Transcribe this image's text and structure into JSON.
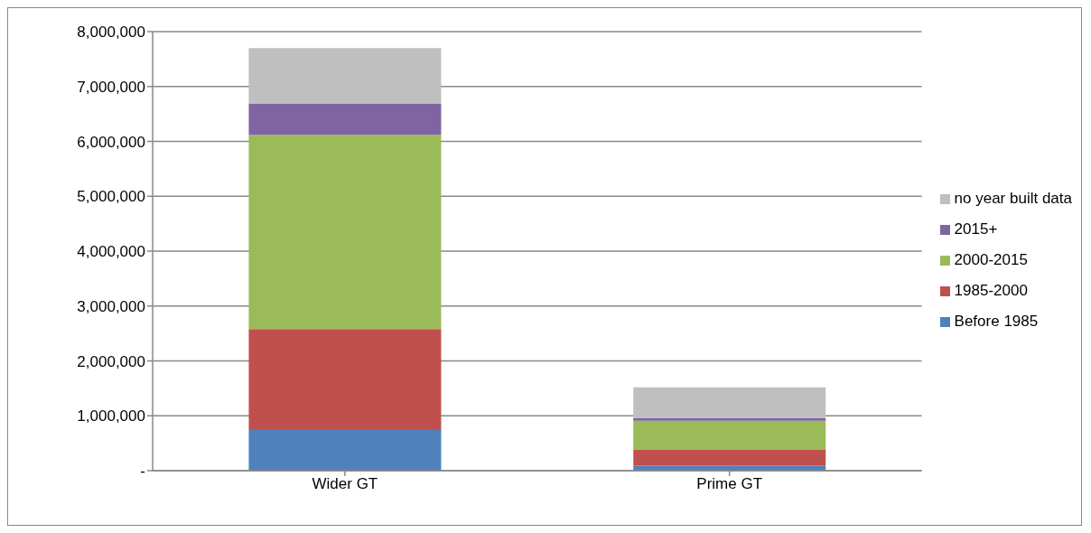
{
  "chart_data": {
    "type": "bar",
    "stacked": true,
    "categories": [
      "Wider GT",
      "Prime GT"
    ],
    "series": [
      {
        "name": "Before 1985",
        "color": "#4f81bd",
        "values": [
          740000,
          90000
        ]
      },
      {
        "name": "1985-2000",
        "color": "#c0504d",
        "values": [
          1840000,
          290000
        ]
      },
      {
        "name": "2000-2015",
        "color": "#9bbb59",
        "values": [
          3540000,
          530000
        ]
      },
      {
        "name": "2015+",
        "color": "#8064a2",
        "values": [
          570000,
          50000
        ]
      },
      {
        "name": "no year built data",
        "color": "#bfbfbf",
        "values": [
          1010000,
          560000
        ]
      }
    ],
    "ylim": [
      0,
      8000000
    ],
    "yticks": [
      {
        "value": 0,
        "label": "-"
      },
      {
        "value": 1000000,
        "label": "1,000,000"
      },
      {
        "value": 2000000,
        "label": "2,000,000"
      },
      {
        "value": 3000000,
        "label": "3,000,000"
      },
      {
        "value": 4000000,
        "label": "4,000,000"
      },
      {
        "value": 5000000,
        "label": "5,000,000"
      },
      {
        "value": 6000000,
        "label": "6,000,000"
      },
      {
        "value": 7000000,
        "label": "7,000,000"
      },
      {
        "value": 8000000,
        "label": "8,000,000"
      }
    ],
    "grid": "y",
    "legend": "right"
  }
}
